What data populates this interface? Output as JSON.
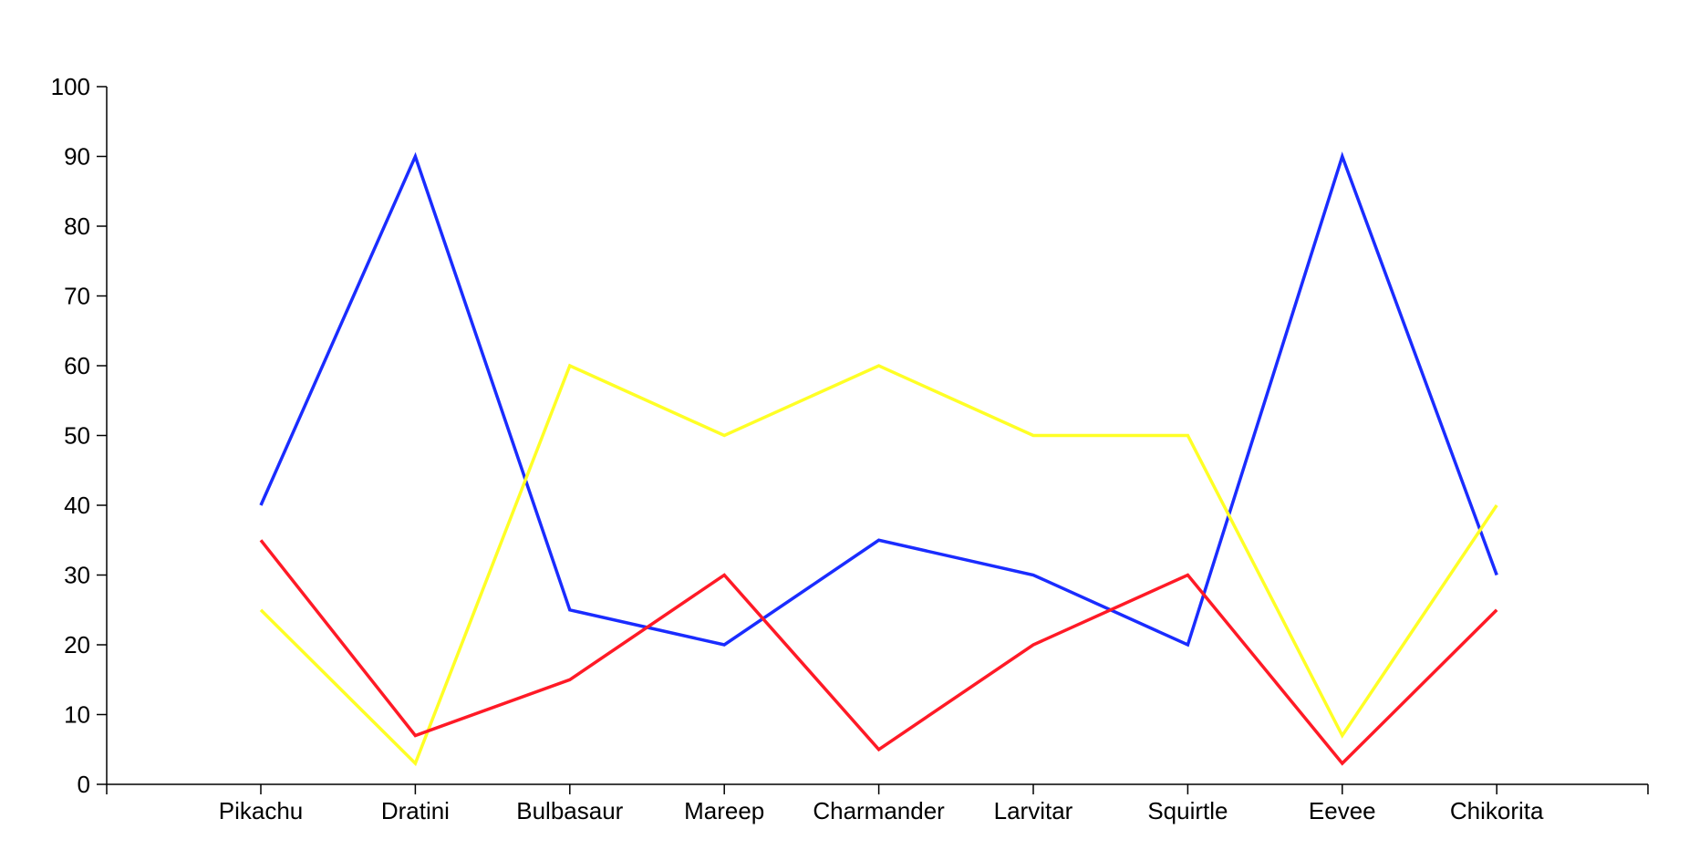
{
  "chart_data": {
    "type": "line",
    "categories": [
      "Pikachu",
      "Dratini",
      "Bulbasaur",
      "Mareep",
      "Charmander",
      "Larvitar",
      "Squirtle",
      "Eevee",
      "Chikorita"
    ],
    "series": [
      {
        "color": "#1a2cff",
        "values": [
          40,
          90,
          25,
          20,
          35,
          30,
          20,
          90,
          30
        ]
      },
      {
        "color": "#ffff26",
        "values": [
          25,
          3,
          60,
          50,
          60,
          50,
          50,
          7,
          40
        ]
      },
      {
        "color": "#ff1a26",
        "values": [
          35,
          7,
          15,
          30,
          5,
          20,
          30,
          3,
          25
        ]
      }
    ],
    "y_ticks": [
      "0",
      "10",
      "20",
      "30",
      "40",
      "50",
      "60",
      "70",
      "80",
      "90",
      "100"
    ],
    "ylim": [
      0,
      100
    ],
    "title": "",
    "xlabel": "",
    "ylabel": "",
    "grid": false,
    "legend": "none"
  }
}
